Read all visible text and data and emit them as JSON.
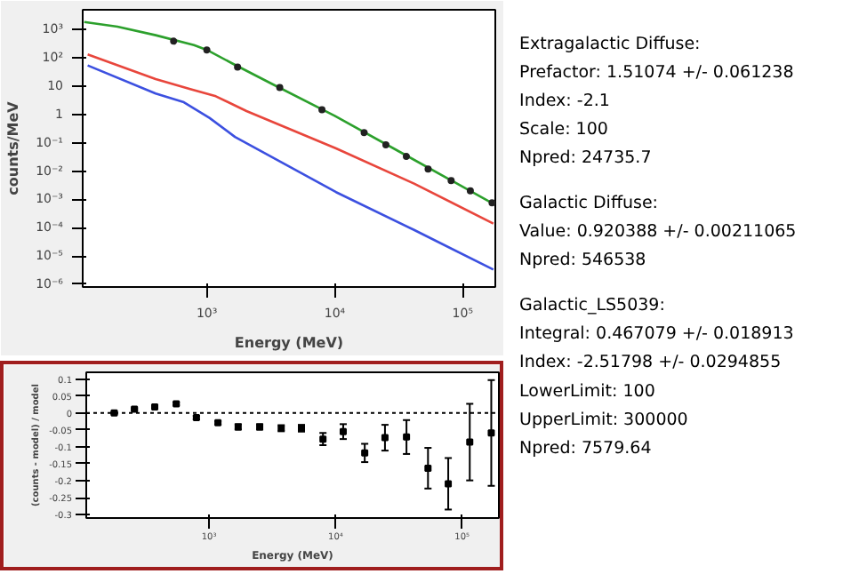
{
  "chart_data": [
    {
      "type": "line",
      "xlabel": "Energy (MeV)",
      "ylabel": "counts/MeV",
      "log": "xy",
      "grid": false,
      "xlim": [
        107,
        180000
      ],
      "ylim": [
        8e-07,
        5000
      ],
      "xticks": [
        {
          "value": 1000,
          "label": "10³"
        },
        {
          "value": 10000,
          "label": "10⁴"
        },
        {
          "value": 100000,
          "label": "10⁵"
        }
      ],
      "yticks": [
        {
          "value": 1000,
          "label": "10³"
        },
        {
          "value": 100,
          "label": "10²"
        },
        10,
        1,
        {
          "value": 0.1,
          "label": "10⁻¹"
        },
        {
          "value": 0.01,
          "label": "10⁻²"
        },
        {
          "value": 0.001,
          "label": "10⁻³"
        },
        {
          "value": 0.0001,
          "label": "10⁻⁴"
        },
        {
          "value": 1e-05,
          "label": "10⁻⁵"
        },
        {
          "value": 1e-06,
          "label": "10⁻⁶"
        }
      ],
      "series": [
        {
          "type": "line",
          "color": "#2ca02c",
          "x": [
            110,
            200,
            398,
            794,
            1000,
            1585,
            3162,
            10000,
            31623,
            100000,
            173780
          ],
          "values": [
            1862,
            1259,
            631,
            282,
            191,
            63,
            12.6,
            0.89,
            0.05,
            0.0028,
            0.0007
          ]
        },
        {
          "type": "line",
          "color": "#e8463c",
          "x": [
            117,
            398,
            741,
            1175,
            2042,
            10233,
            41687,
            173780
          ],
          "values": [
            132,
            17.8,
            7.9,
            4.4,
            1.32,
            0.063,
            0.0036,
            0.00014
          ]
        },
        {
          "type": "line",
          "color": "#3c50e0",
          "x": [
            117,
            398,
            661,
            1047,
            1660,
            10233,
            41687,
            173780
          ],
          "values": [
            54,
            5.5,
            2.7,
            0.76,
            0.16,
            0.0018,
            8.3e-05,
            3.3e-06
          ]
        },
        {
          "type": "scatter",
          "marker": "circle",
          "color": "#222222",
          "x": [
            550,
            1000,
            1738,
            3715,
            7943,
            16982,
            25119,
            36308,
            53703,
            81283,
            114815,
            169824
          ],
          "values": [
            389,
            191,
            47,
            8.9,
            1.48,
            0.23,
            0.085,
            0.033,
            0.0117,
            0.0046,
            0.002,
            0.00076
          ]
        }
      ]
    },
    {
      "type": "scatter",
      "xlabel": "Energy (MeV)",
      "ylabel": "(counts - model) / model",
      "log": "x",
      "grid": false,
      "marker": "square",
      "xlim": [
        107,
        195000
      ],
      "ylim": [
        -0.31,
        0.12
      ],
      "xticks": [
        {
          "value": 1000,
          "label": "10³"
        },
        {
          "value": 10000,
          "label": "10⁴"
        },
        {
          "value": 100000,
          "label": "10⁵"
        }
      ],
      "yticks": [
        0.1,
        0.05,
        0,
        -0.05,
        -0.1,
        -0.15,
        -0.2,
        -0.25,
        -0.3
      ],
      "ref_lines": [
        {
          "axis": "y",
          "value": 0,
          "line_style": "dotted",
          "color": "#000000"
        }
      ],
      "series": [
        {
          "color": "#000000",
          "x": [
            178,
            257,
            372,
            550,
            794,
            1175,
            1698,
            2512,
            3715,
            5370,
            7943,
            11482,
            16982,
            24547,
            36308,
            53703,
            77625,
            114815,
            169824
          ],
          "values": [
            0,
            0.011,
            0.018,
            0.027,
            -0.014,
            -0.029,
            -0.041,
            -0.041,
            -0.045,
            -0.045,
            -0.077,
            -0.055,
            -0.118,
            -0.073,
            -0.071,
            -0.163,
            -0.209,
            -0.086,
            -0.059
          ],
          "errors": [
            0.003,
            0.003,
            0.004,
            0.004,
            0.005,
            0.005,
            0.008,
            0.008,
            0.009,
            0.01,
            0.018,
            0.022,
            0.027,
            0.038,
            0.05,
            0.06,
            0.076,
            0.113,
            0.156
          ]
        }
      ]
    },
    {
      "type": "other",
      "annotations": [
        "Extragalactic Diffuse:\nPrefactor: 1.51074 +/- 0.061238\nIndex: -2.1\nScale: 100\nNpred: 24735.7",
        "Galactic Diffuse:\nValue: 0.920388 +/- 0.00211065\nNpred: 546538",
        "Galactic_LS5039:\nIntegral: 0.467079 +/- 0.018913\nIndex: -2.51798 +/- 0.0294855\nLowerLimit: 100\nUpperLimit: 300000\nNpred: 7579.64"
      ]
    }
  ]
}
